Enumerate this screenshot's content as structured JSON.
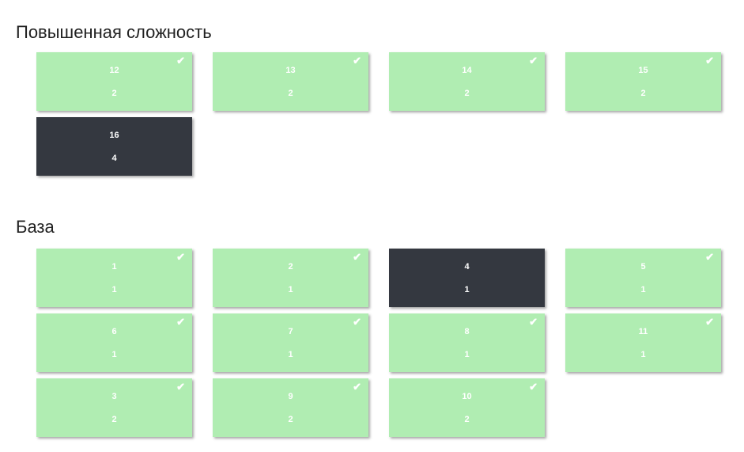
{
  "sections": [
    {
      "title": "Повышенная сложность",
      "cards": [
        {
          "number": "12",
          "points": "2",
          "done": true
        },
        {
          "number": "13",
          "points": "2",
          "done": true
        },
        {
          "number": "14",
          "points": "2",
          "done": true
        },
        {
          "number": "15",
          "points": "2",
          "done": true
        },
        {
          "number": "16",
          "points": "4",
          "done": false
        }
      ]
    },
    {
      "title": "База",
      "cards": [
        {
          "number": "1",
          "points": "1",
          "done": true
        },
        {
          "number": "2",
          "points": "1",
          "done": true
        },
        {
          "number": "4",
          "points": "1",
          "done": false
        },
        {
          "number": "5",
          "points": "1",
          "done": true
        },
        {
          "number": "6",
          "points": "1",
          "done": true
        },
        {
          "number": "7",
          "points": "1",
          "done": true
        },
        {
          "number": "8",
          "points": "1",
          "done": true
        },
        {
          "number": "11",
          "points": "1",
          "done": true
        },
        {
          "number": "3",
          "points": "2",
          "done": true
        },
        {
          "number": "9",
          "points": "2",
          "done": true
        },
        {
          "number": "10",
          "points": "2",
          "done": true
        }
      ]
    }
  ],
  "colors": {
    "done": "#b0edb2",
    "pending": "#343840"
  }
}
